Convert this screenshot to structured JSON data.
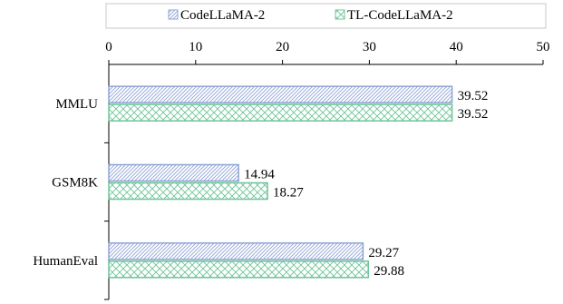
{
  "chart_data": {
    "type": "bar",
    "orientation": "horizontal",
    "categories": [
      "MMLU",
      "GSM8K",
      "HumanEval"
    ],
    "series": [
      {
        "name": "CodeLLaMA-2",
        "values": [
          39.52,
          14.94,
          29.27
        ],
        "color": "#8fa4d4",
        "pattern": "diagonal-hatch"
      },
      {
        "name": "TL-CodeLLaMA-2",
        "values": [
          39.52,
          18.27,
          29.88
        ],
        "color": "#6fc49a",
        "pattern": "crosshatch"
      }
    ],
    "data_labels": [
      [
        "39.52",
        "14.94",
        "29.27"
      ],
      [
        "39.52",
        "18.27",
        "29.88"
      ]
    ],
    "xlim": [
      0,
      50
    ],
    "xticks": [
      0,
      10,
      20,
      30,
      40,
      50
    ],
    "x_axis_position": "top",
    "grid": false,
    "legend": "top",
    "title": "",
    "xlabel": "",
    "ylabel": ""
  }
}
